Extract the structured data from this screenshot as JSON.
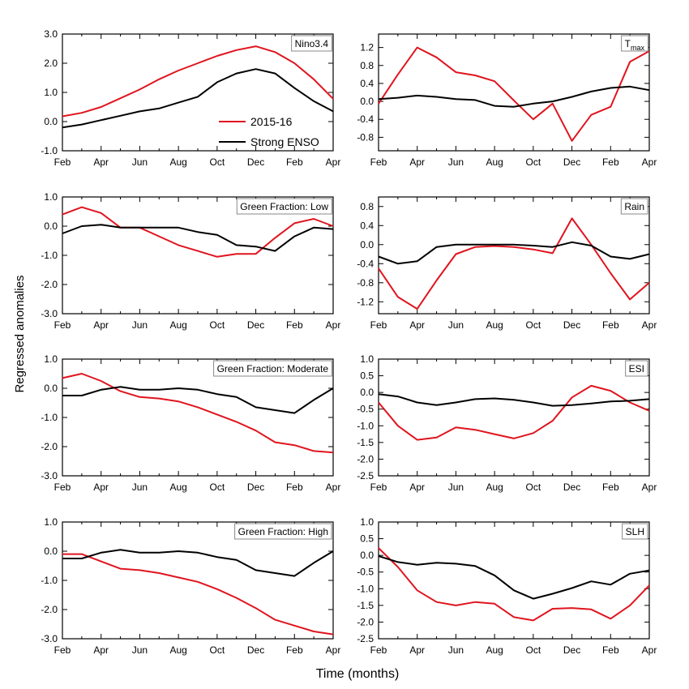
{
  "figure": {
    "ylabel": "Regressed anomalies",
    "xlabel": "Time (months)"
  },
  "legend": {
    "location": "inside-nino34-panel",
    "entries": [
      {
        "label": "2015-16",
        "color": "#e0141e"
      },
      {
        "label": "Strong ENSO",
        "color": "#000000"
      }
    ]
  },
  "colors": {
    "series_2015_16": "#e0141e",
    "series_strong_enso": "#000000"
  },
  "chart_data": [
    {
      "type": "line",
      "title": "Nino3.4",
      "x": [
        0,
        1,
        2,
        3,
        4,
        5,
        6,
        7,
        8,
        9,
        10,
        11,
        12,
        13,
        14
      ],
      "xticks": [
        "Feb",
        "Apr",
        "Jun",
        "Aug",
        "Oct",
        "Dec",
        "Feb",
        "Apr"
      ],
      "ylim": [
        -1.0,
        3.0
      ],
      "yticks": [
        "-1.0",
        "0.0",
        "1.0",
        "2.0",
        "3.0"
      ],
      "series": [
        {
          "name": "2015-16",
          "values": [
            0.18,
            0.3,
            0.5,
            0.8,
            1.1,
            1.45,
            1.75,
            2.0,
            2.25,
            2.45,
            2.58,
            2.38,
            2.0,
            1.45,
            0.78
          ]
        },
        {
          "name": "Strong ENSO",
          "values": [
            -0.2,
            -0.1,
            0.05,
            0.2,
            0.35,
            0.45,
            0.65,
            0.85,
            1.35,
            1.65,
            1.8,
            1.65,
            1.15,
            0.7,
            0.35
          ]
        }
      ]
    },
    {
      "type": "line",
      "title": "T",
      "title_sub": "max",
      "x": [
        0,
        1,
        2,
        3,
        4,
        5,
        6,
        7,
        8,
        9,
        10,
        11,
        12,
        13,
        14
      ],
      "xticks": [
        "Feb",
        "Apr",
        "Jun",
        "Aug",
        "Oct",
        "Dec",
        "Feb",
        "Apr"
      ],
      "ylim": [
        -1.1,
        1.5
      ],
      "yticks": [
        "-0.8",
        "-0.4",
        "0.0",
        "0.4",
        "0.8",
        "1.2"
      ],
      "series": [
        {
          "name": "2015-16",
          "values": [
            -0.05,
            0.6,
            1.2,
            0.98,
            0.65,
            0.58,
            0.45,
            0.02,
            -0.4,
            -0.05,
            -0.88,
            -0.3,
            -0.12,
            0.88,
            1.12
          ]
        },
        {
          "name": "Strong ENSO",
          "values": [
            0.05,
            0.08,
            0.13,
            0.1,
            0.05,
            0.03,
            -0.1,
            -0.12,
            -0.05,
            0.0,
            0.1,
            0.22,
            0.3,
            0.33,
            0.25
          ]
        }
      ]
    },
    {
      "type": "line",
      "title": "Green Fraction: Low",
      "x": [
        0,
        1,
        2,
        3,
        4,
        5,
        6,
        7,
        8,
        9,
        10,
        11,
        12,
        13,
        14
      ],
      "xticks": [
        "Feb",
        "Apr",
        "Jun",
        "Aug",
        "Oct",
        "Dec",
        "Feb",
        "Apr"
      ],
      "ylim": [
        -3.0,
        1.0
      ],
      "yticks": [
        "-3.0",
        "-2.0",
        "-1.0",
        "0.0",
        "1.0"
      ],
      "series": [
        {
          "name": "2015-16",
          "values": [
            0.4,
            0.65,
            0.45,
            -0.05,
            -0.05,
            -0.35,
            -0.65,
            -0.85,
            -1.05,
            -0.95,
            -0.95,
            -0.4,
            0.1,
            0.25,
            0.0
          ]
        },
        {
          "name": "Strong ENSO",
          "values": [
            -0.25,
            0.0,
            0.05,
            -0.05,
            -0.05,
            -0.05,
            -0.05,
            -0.2,
            -0.3,
            -0.65,
            -0.7,
            -0.85,
            -0.35,
            -0.05,
            -0.1
          ]
        }
      ]
    },
    {
      "type": "line",
      "title": "Rain",
      "x": [
        0,
        1,
        2,
        3,
        4,
        5,
        6,
        7,
        8,
        9,
        10,
        11,
        12,
        13,
        14
      ],
      "xticks": [
        "Feb",
        "Apr",
        "Jun",
        "Aug",
        "Oct",
        "Dec",
        "Feb",
        "Apr"
      ],
      "ylim": [
        -1.45,
        1.0
      ],
      "yticks": [
        "-1.2",
        "-0.8",
        "-0.4",
        "0.0",
        "0.4",
        "0.8"
      ],
      "series": [
        {
          "name": "2015-16",
          "values": [
            -0.5,
            -1.1,
            -1.35,
            -0.75,
            -0.2,
            -0.05,
            -0.03,
            -0.05,
            -0.1,
            -0.18,
            0.55,
            0.0,
            -0.6,
            -1.15,
            -0.8
          ]
        },
        {
          "name": "Strong ENSO",
          "values": [
            -0.25,
            -0.4,
            -0.35,
            -0.05,
            0.0,
            0.0,
            0.0,
            0.0,
            -0.02,
            -0.05,
            0.05,
            -0.02,
            -0.25,
            -0.3,
            -0.2
          ]
        }
      ]
    },
    {
      "type": "line",
      "title": "Green Fraction: Moderate",
      "x": [
        0,
        1,
        2,
        3,
        4,
        5,
        6,
        7,
        8,
        9,
        10,
        11,
        12,
        13,
        14
      ],
      "xticks": [
        "Feb",
        "Apr",
        "Jun",
        "Aug",
        "Oct",
        "Dec",
        "Feb",
        "Apr"
      ],
      "ylim": [
        -3.0,
        1.0
      ],
      "yticks": [
        "-3.0",
        "-2.0",
        "-1.0",
        "0.0",
        "1.0"
      ],
      "series": [
        {
          "name": "2015-16",
          "values": [
            0.35,
            0.5,
            0.25,
            -0.1,
            -0.3,
            -0.35,
            -0.45,
            -0.65,
            -0.9,
            -1.15,
            -1.45,
            -1.85,
            -1.95,
            -2.15,
            -2.2
          ]
        },
        {
          "name": "Strong ENSO",
          "values": [
            -0.25,
            -0.25,
            -0.05,
            0.05,
            -0.05,
            -0.05,
            0.0,
            -0.05,
            -0.2,
            -0.3,
            -0.65,
            -0.75,
            -0.85,
            -0.4,
            0.0
          ]
        }
      ]
    },
    {
      "type": "line",
      "title": "ESI",
      "x": [
        0,
        1,
        2,
        3,
        4,
        5,
        6,
        7,
        8,
        9,
        10,
        11,
        12,
        13,
        14
      ],
      "xticks": [
        "Feb",
        "Apr",
        "Jun",
        "Aug",
        "Oct",
        "Dec",
        "Feb",
        "Apr"
      ],
      "ylim": [
        -2.5,
        1.0
      ],
      "yticks": [
        "-2.5",
        "-2.0",
        "-1.5",
        "-1.0",
        "-0.5",
        "0.0",
        "0.5",
        "1.0"
      ],
      "series": [
        {
          "name": "2015-16",
          "values": [
            -0.3,
            -1.0,
            -1.42,
            -1.35,
            -1.05,
            -1.12,
            -1.25,
            -1.38,
            -1.22,
            -0.85,
            -0.15,
            0.2,
            0.05,
            -0.3,
            -0.55
          ]
        },
        {
          "name": "Strong ENSO",
          "values": [
            -0.05,
            -0.12,
            -0.3,
            -0.38,
            -0.3,
            -0.2,
            -0.18,
            -0.22,
            -0.3,
            -0.4,
            -0.38,
            -0.33,
            -0.27,
            -0.25,
            -0.2
          ]
        }
      ]
    },
    {
      "type": "line",
      "title": "Green Fraction: High",
      "x": [
        0,
        1,
        2,
        3,
        4,
        5,
        6,
        7,
        8,
        9,
        10,
        11,
        12,
        13,
        14
      ],
      "xticks": [
        "Feb",
        "Apr",
        "Jun",
        "Aug",
        "Oct",
        "Dec",
        "Feb",
        "Apr"
      ],
      "ylim": [
        -3.0,
        1.0
      ],
      "yticks": [
        "-3.0",
        "-2.0",
        "-1.0",
        "0.0",
        "1.0"
      ],
      "series": [
        {
          "name": "2015-16",
          "values": [
            -0.1,
            -0.1,
            -0.35,
            -0.6,
            -0.65,
            -0.75,
            -0.9,
            -1.05,
            -1.3,
            -1.6,
            -1.95,
            -2.35,
            -2.55,
            -2.75,
            -2.85
          ]
        },
        {
          "name": "Strong ENSO",
          "values": [
            -0.25,
            -0.25,
            -0.05,
            0.05,
            -0.05,
            -0.05,
            0.0,
            -0.05,
            -0.2,
            -0.3,
            -0.65,
            -0.75,
            -0.85,
            -0.4,
            0.0
          ]
        }
      ]
    },
    {
      "type": "line",
      "title": "SLH",
      "x": [
        0,
        1,
        2,
        3,
        4,
        5,
        6,
        7,
        8,
        9,
        10,
        11,
        12,
        13,
        14
      ],
      "xticks": [
        "Feb",
        "Apr",
        "Jun",
        "Aug",
        "Oct",
        "Dec",
        "Feb",
        "Apr"
      ],
      "ylim": [
        -2.5,
        1.0
      ],
      "yticks": [
        "-2.5",
        "-2.0",
        "-1.5",
        "-1.0",
        "-0.5",
        "0.0",
        "0.5",
        "1.0"
      ],
      "series": [
        {
          "name": "2015-16",
          "values": [
            0.22,
            -0.35,
            -1.05,
            -1.4,
            -1.5,
            -1.4,
            -1.45,
            -1.85,
            -1.95,
            -1.6,
            -1.58,
            -1.62,
            -1.9,
            -1.5,
            -0.9
          ]
        },
        {
          "name": "Strong ENSO",
          "values": [
            -0.02,
            -0.2,
            -0.28,
            -0.22,
            -0.25,
            -0.32,
            -0.6,
            -1.05,
            -1.3,
            -1.15,
            -0.98,
            -0.78,
            -0.88,
            -0.55,
            -0.45
          ]
        }
      ]
    }
  ]
}
